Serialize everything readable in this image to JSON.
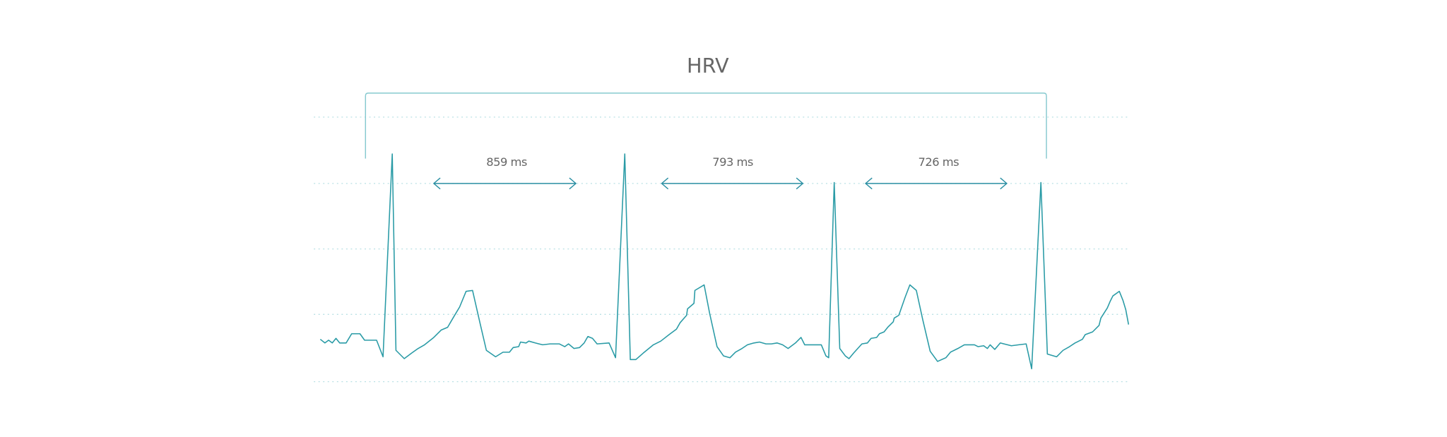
{
  "title": "HRV",
  "intervals": [
    "859 ms",
    "793 ms",
    "726 ms"
  ]
}
